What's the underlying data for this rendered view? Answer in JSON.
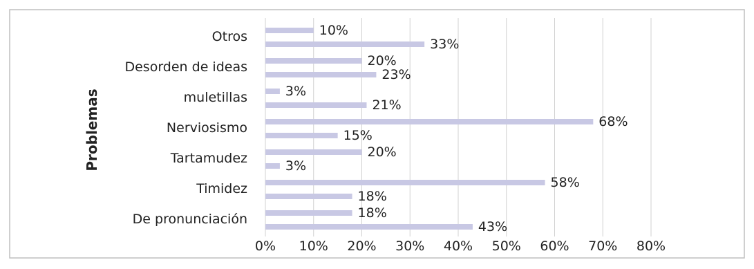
{
  "chart_data": {
    "type": "bar",
    "orientation": "horizontal",
    "ylabel": "Problemas",
    "categories": [
      "Otros",
      "Desorden de ideas",
      "muletillas",
      "Nerviosismo",
      "Tartamudez",
      "Timidez",
      "De pronunciación"
    ],
    "series": [
      {
        "values": [
          10,
          20,
          3,
          68,
          20,
          58,
          18
        ]
      },
      {
        "values": [
          33,
          23,
          21,
          15,
          3,
          18,
          43
        ]
      }
    ],
    "data_labels": [
      [
        "10%",
        "33%"
      ],
      [
        "20%",
        "23%"
      ],
      [
        "3%",
        "21%"
      ],
      [
        "68%",
        "15%"
      ],
      [
        "20%",
        "3%"
      ],
      [
        "58%",
        "18%"
      ],
      [
        "18%",
        "43%"
      ]
    ],
    "xlim": [
      0,
      80
    ],
    "x_ticks": [
      "0%",
      "10%",
      "20%",
      "30%",
      "40%",
      "50%",
      "60%",
      "70%",
      "80%"
    ],
    "grid": true,
    "legend": "none",
    "colors": {
      "bar": "#c8c8e4",
      "grid": "#d0d0d0",
      "border": "#bfbfbf",
      "text": "#222222"
    }
  }
}
